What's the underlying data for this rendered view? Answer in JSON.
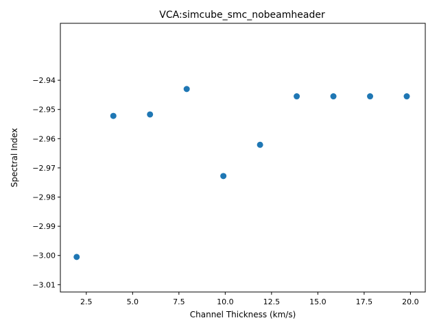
{
  "chart_data": {
    "type": "scatter",
    "title": "VCA:simcube_smc_nobeamheader",
    "xlabel": "Channel Thickness (km/s)",
    "ylabel": "Spectral Index",
    "xlim": [
      1.1,
      20.8
    ],
    "ylim": [
      -3.0125,
      -2.9205
    ],
    "xticks": [
      2.5,
      5.0,
      7.5,
      10.0,
      12.5,
      15.0,
      17.5,
      20.0
    ],
    "xtick_labels": [
      "2.5",
      "5.0",
      "7.5",
      "10.0",
      "12.5",
      "15.0",
      "17.5",
      "20.0"
    ],
    "yticks": [
      -3.01,
      -3.0,
      -2.99,
      -2.98,
      -2.97,
      -2.96,
      -2.95,
      -2.94
    ],
    "ytick_labels": [
      "−3.01",
      "−3.00",
      "−2.99",
      "−2.98",
      "−2.97",
      "−2.96",
      "−2.95",
      "−2.94"
    ],
    "marker_color": "#1f77b4",
    "grid": false,
    "series": [
      {
        "x": [
          1.98,
          3.96,
          5.94,
          7.92,
          9.9,
          11.88,
          13.86,
          15.84,
          17.82,
          19.8
        ],
        "y": [
          -3.0005,
          -2.9522,
          -2.9517,
          -2.943,
          -2.9728,
          -2.9621,
          -2.9455,
          -2.9455,
          -2.9455,
          -2.9455
        ]
      }
    ]
  }
}
